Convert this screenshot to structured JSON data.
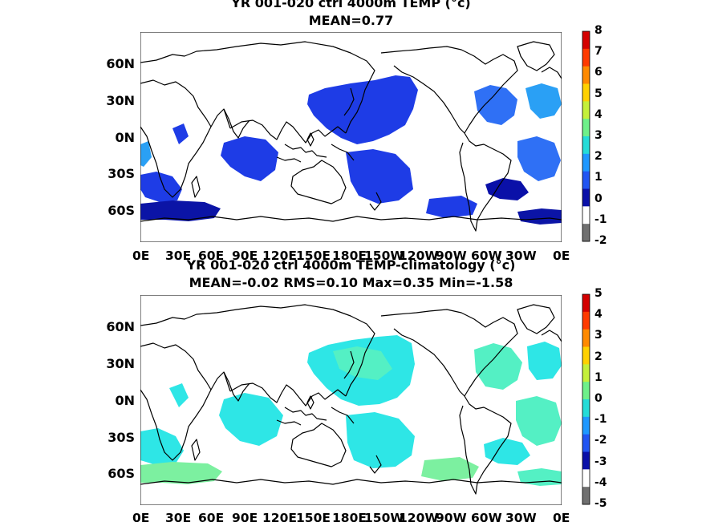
{
  "panels": [
    {
      "title": "YR 001-020 ctrl 4000m TEMP (°c)",
      "stats": "MEAN=0.77",
      "lat_labels": [
        "60N",
        "30N",
        "0N",
        "30S",
        "60S"
      ],
      "lon_labels": [
        "0E",
        "30E",
        "60E",
        "90E",
        "120E",
        "150E",
        "180E",
        "150W",
        "120W",
        "90W",
        "60W",
        "30W",
        "0E"
      ],
      "colorbar": {
        "ticks": [
          "8",
          "7",
          "6",
          "5",
          "4",
          "3",
          "2",
          "1",
          "0",
          "-1",
          "-2"
        ],
        "colors": [
          "#d40000",
          "#ff3a00",
          "#ff8a00",
          "#ffd100",
          "#c4f03a",
          "#6ef08a",
          "#24dcd8",
          "#1e98ff",
          "#2155f2",
          "#0a10a8",
          "#ffffff",
          "#707070"
        ]
      },
      "field_colors": {
        "deep": "#0b14a6",
        "main": "#1e3ce6",
        "light": "#2f70f5",
        "lighter": "#2aa0f5"
      }
    },
    {
      "title": "YR 001-020 ctrl 4000m TEMP-climatology (°c)",
      "stats": "MEAN=-0.02   RMS=0.10   Max=0.35   Min=-1.58",
      "lat_labels": [
        "60N",
        "30N",
        "0N",
        "30S",
        "60S"
      ],
      "lon_labels": [
        "0E",
        "30E",
        "60E",
        "90E",
        "120E",
        "150E",
        "180E",
        "150W",
        "120W",
        "90W",
        "60W",
        "30W",
        "0E"
      ],
      "colorbar": {
        "ticks": [
          "5",
          "4",
          "3",
          "2",
          "1",
          "0",
          "-1",
          "-2",
          "-3",
          "-4",
          "-5"
        ],
        "colors": [
          "#d40000",
          "#ff3a00",
          "#ff8a00",
          "#ffd100",
          "#c4f03a",
          "#6ef08a",
          "#24dcd8",
          "#1e98ff",
          "#2155f2",
          "#0a10a8",
          "#ffffff",
          "#707070"
        ]
      },
      "field_colors": {
        "main": "#2ee6e6",
        "light": "#54f0c4",
        "green": "#7cf0a0"
      }
    }
  ]
}
